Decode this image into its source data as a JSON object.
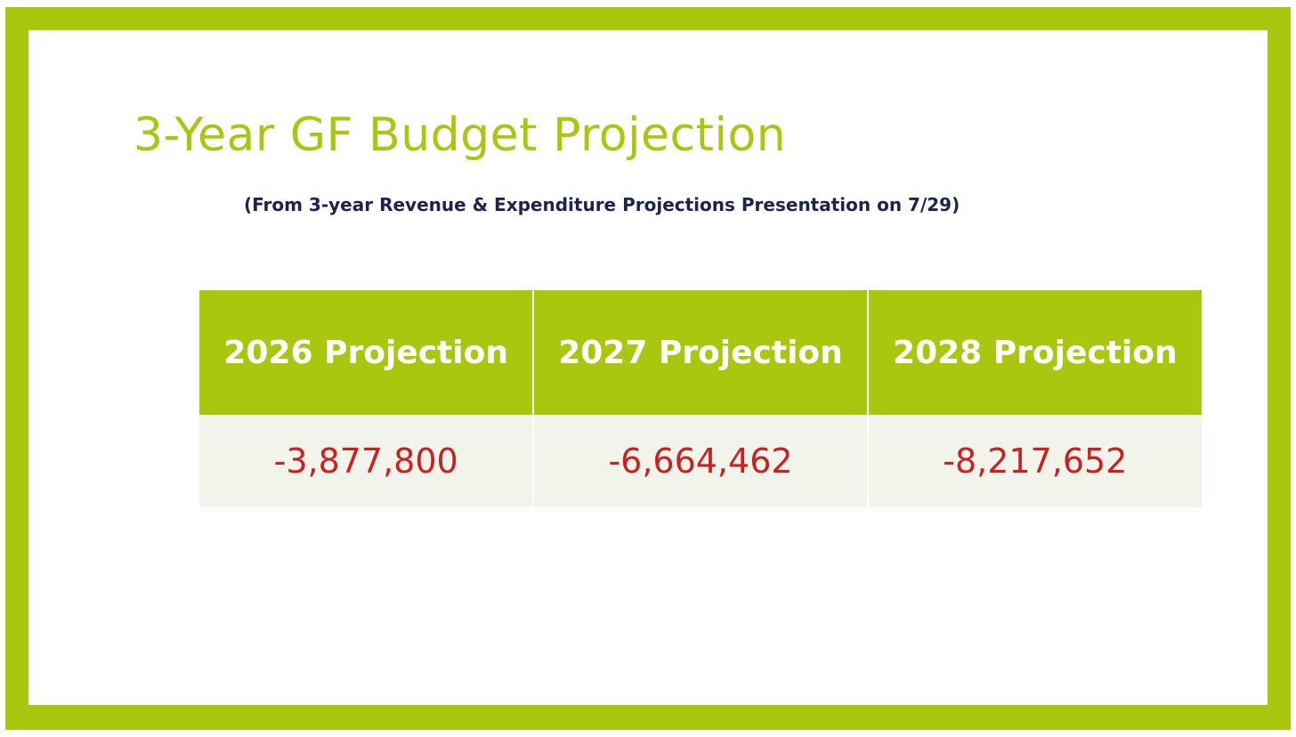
{
  "slide": {
    "title": "3-Year GF Budget Projection",
    "subtitle": "(From 3-year Revenue & Expenditure Projections Presentation on 7/29)"
  },
  "table": {
    "headers": [
      "2026 Projection",
      "2027 Projection",
      "2028 Projection"
    ],
    "values": [
      "-3,877,800",
      "-6,664,462",
      "-8,217,652"
    ]
  },
  "colors": {
    "accent_green": "#a9c70f",
    "subtitle_navy": "#1b2450",
    "negative_red": "#cc1f1f",
    "row_background": "#f1f4ea"
  }
}
